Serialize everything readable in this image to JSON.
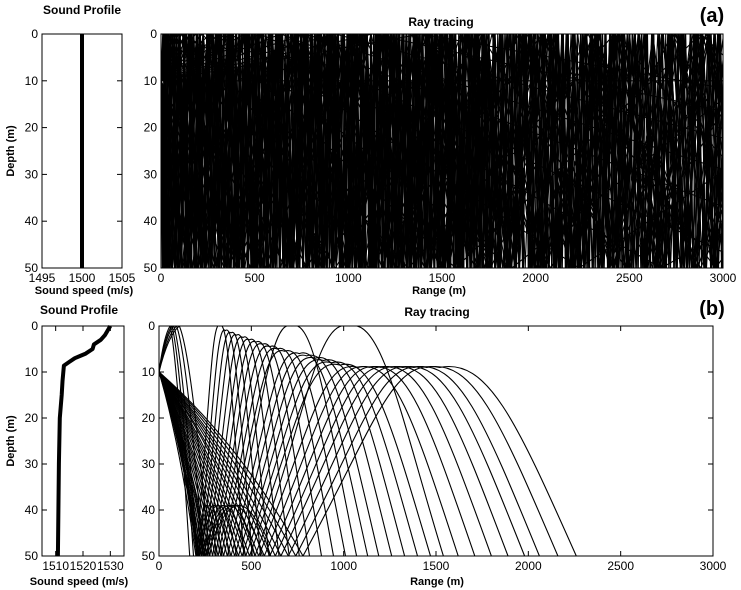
{
  "chart_data": [
    {
      "id": "a-profile",
      "type": "line",
      "title": "Sound Profile",
      "xlabel": "Sound speed (m/s)",
      "ylabel": "Depth (m)",
      "xlim": [
        1495,
        1505
      ],
      "ylim": [
        0,
        50
      ],
      "y_inverted": true,
      "xticks": [
        1495,
        1500,
        1505
      ],
      "yticks": [
        0,
        10,
        20,
        30,
        40,
        50
      ],
      "series": [
        {
          "x": [
            1500,
            1500
          ],
          "y": [
            0,
            50
          ]
        }
      ]
    },
    {
      "id": "a-rays",
      "type": "line",
      "title": "Ray tracing",
      "xlabel": "Range (m)",
      "ylabel": "",
      "xlim": [
        0,
        3000
      ],
      "ylim": [
        0,
        50
      ],
      "y_inverted": true,
      "xticks": [
        0,
        500,
        1000,
        1500,
        2000,
        2500,
        3000
      ],
      "yticks": [
        0,
        10,
        20,
        30,
        40,
        50
      ],
      "source_depth_m": 10,
      "ray_model": "straight lines reflecting at surface (0 m) and bottom (50 m)",
      "rays": {
        "count": 48,
        "horizontal_ray": true,
        "surface_intercepts_m": [
          9,
          12,
          15,
          19,
          23,
          28,
          33,
          40,
          48,
          57,
          67,
          79,
          93,
          110,
          130,
          155,
          185,
          220,
          262,
          312,
          372,
          445,
          530,
          640,
          770,
          930,
          1130,
          1390
        ],
        "bottom_intercepts_m": [
          7,
          10,
          13,
          17,
          21,
          26,
          31,
          37,
          44,
          52,
          61,
          72,
          85,
          100,
          118,
          140,
          166,
          198,
          236,
          282,
          337,
          402,
          480
        ]
      }
    },
    {
      "id": "b-profile",
      "type": "line",
      "title": "Sound Profile",
      "xlabel": "Sound speed (m/s)",
      "ylabel": "Depth (m)",
      "xlim": [
        1505,
        1535
      ],
      "ylim": [
        0,
        50
      ],
      "y_inverted": true,
      "xticks": [
        1510,
        1520,
        1530
      ],
      "yticks": [
        0,
        10,
        20,
        30,
        40,
        50
      ],
      "series": [
        {
          "x": [
            1530,
            1528,
            1526.5,
            1524,
            1523.5,
            1521,
            1519,
            1517,
            1515,
            1513,
            1512.5,
            1512.2,
            1511.5,
            1511.2,
            1511,
            1510.8
          ],
          "y": [
            0,
            2,
            3,
            4,
            5,
            6,
            6.5,
            7,
            7.8,
            8.6,
            12,
            15,
            20,
            30,
            40,
            50
          ]
        }
      ]
    },
    {
      "id": "b-rays",
      "type": "line",
      "title": "Ray tracing",
      "xlabel": "Range (m)",
      "ylabel": "",
      "xlim": [
        0,
        3000
      ],
      "ylim": [
        0,
        50
      ],
      "y_inverted": true,
      "xticks": [
        0,
        500,
        1000,
        1500,
        2000,
        2500,
        3000
      ],
      "yticks": [
        0,
        10,
        20,
        30,
        40,
        50
      ],
      "source_depth_m": 10,
      "ray_model": "refracting arcs: turn up near bottom, then arch through upper layer",
      "rays": {
        "direct_surface_reflections_m": [
          60,
          70,
          80,
          95,
          110
        ],
        "early_bottom_turns_m": [
          [
            205,
            310
          ],
          [
            210,
            340
          ],
          [
            215,
            380
          ],
          [
            220,
            420
          ],
          [
            230,
            470
          ],
          [
            240,
            520
          ],
          [
            250,
            560
          ],
          [
            260,
            605
          ]
        ],
        "arches": [
          {
            "start": 200,
            "peak": 330,
            "apex": 0,
            "end": 460
          },
          {
            "start": 215,
            "peak": 360,
            "apex": 1,
            "end": 505
          },
          {
            "start": 230,
            "peak": 390,
            "apex": 1.5,
            "end": 550
          },
          {
            "start": 245,
            "peak": 420,
            "apex": 2,
            "end": 595
          },
          {
            "start": 260,
            "peak": 455,
            "apex": 2.5,
            "end": 650
          },
          {
            "start": 275,
            "peak": 490,
            "apex": 3,
            "end": 705
          },
          {
            "start": 290,
            "peak": 525,
            "apex": 3.5,
            "end": 760
          },
          {
            "start": 305,
            "peak": 560,
            "apex": 4,
            "end": 815
          },
          {
            "start": 320,
            "peak": 600,
            "apex": 4.5,
            "end": 880
          },
          {
            "start": 335,
            "peak": 640,
            "apex": 5,
            "end": 945
          },
          {
            "start": 350,
            "peak": 680,
            "apex": 5.5,
            "end": 1010
          },
          {
            "start": 370,
            "peak": 720,
            "apex": 0,
            "end": 1070
          },
          {
            "start": 390,
            "peak": 760,
            "apex": 6,
            "end": 1130
          },
          {
            "start": 410,
            "peak": 800,
            "apex": 6.5,
            "end": 1190
          },
          {
            "start": 430,
            "peak": 845,
            "apex": 7,
            "end": 1260
          },
          {
            "start": 450,
            "peak": 890,
            "apex": 7.5,
            "end": 1330
          },
          {
            "start": 470,
            "peak": 935,
            "apex": 8,
            "end": 1400
          },
          {
            "start": 490,
            "peak": 980,
            "apex": 8.5,
            "end": 1470
          },
          {
            "start": 520,
            "peak": 1030,
            "apex": 0,
            "end": 1540
          },
          {
            "start": 540,
            "peak": 1080,
            "apex": 9,
            "end": 1620
          },
          {
            "start": 570,
            "peak": 1140,
            "apex": 9,
            "end": 1710
          },
          {
            "start": 600,
            "peak": 1200,
            "apex": 9,
            "end": 1800
          },
          {
            "start": 630,
            "peak": 1260,
            "apex": 9,
            "end": 1890
          },
          {
            "start": 660,
            "peak": 1320,
            "apex": 9,
            "end": 1980
          },
          {
            "start": 700,
            "peak": 1380,
            "apex": 9,
            "end": 2060
          },
          {
            "start": 740,
            "peak": 1450,
            "apex": 9,
            "end": 2160
          },
          {
            "start": 780,
            "peak": 1520,
            "apex": 9,
            "end": 2260
          }
        ]
      }
    }
  ],
  "panel_labels": [
    "(a)",
    "(b)"
  ],
  "text": {
    "a_profile_title": "Sound Profile",
    "a_profile_ylabel": "Depth (m)",
    "a_profile_xlabel": "Sound speed (m/s)",
    "a_rays_title": "Ray tracing",
    "a_rays_xlabel": "Range (m)",
    "b_profile_title": "Sound Profile",
    "b_profile_ylabel": "Depth (m)",
    "b_profile_xlabel": "Sound speed (m/s)",
    "b_rays_title": "Ray tracing",
    "b_rays_xlabel": "Range (m)",
    "label_a": "(a)",
    "label_b": "(b)"
  }
}
